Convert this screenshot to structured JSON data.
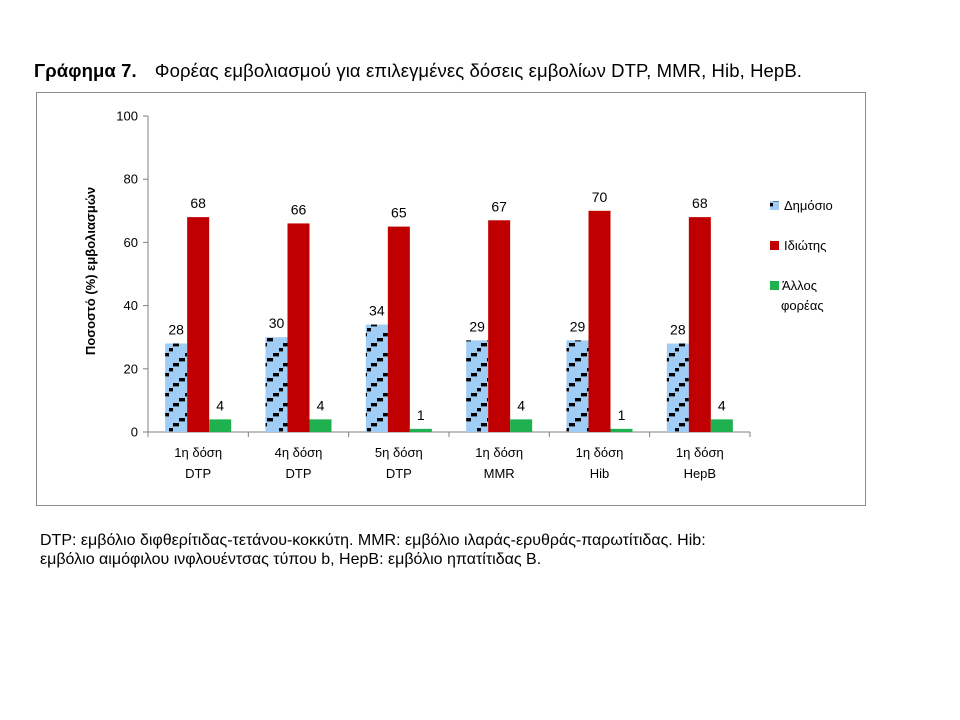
{
  "title": {
    "label": "Γράφημα 7.",
    "text": "Φορέας εμβολιασμού για επιλεγμένες δόσεις εμβολίων DTP, MMR, Hib, HepB."
  },
  "footnote": {
    "line1": "DTP: εμβόλιο διφθερίτιδας-τετάνου-κοκκύτη. MMR: εμβόλιο ιλαράς-ερυθράς-παρωτίτιδας. Hib:",
    "line2": "εμβόλιο αιμόφιλου ινφλουέντσας τύπου b, HepB: εμβόλιο ηπατίτιδας Β."
  },
  "chart_data": {
    "type": "bar",
    "ylabel": "Ποσοστό (%) εμβολιασμών",
    "xlabel": "",
    "ylim": [
      0,
      100
    ],
    "yticks": [
      0,
      20,
      40,
      60,
      80,
      100
    ],
    "grid": false,
    "legend_position": "right",
    "categories": [
      [
        "1η δόση",
        "DTP"
      ],
      [
        "4η δόση",
        "DTP"
      ],
      [
        "5η δόση",
        "DTP"
      ],
      [
        "1η δόση",
        "MMR"
      ],
      [
        "1η δόση",
        "Hib"
      ],
      [
        "1η δόση",
        "HepB"
      ]
    ],
    "series": [
      {
        "name": "Δημόσιο",
        "values": [
          28,
          30,
          34,
          29,
          29,
          28
        ],
        "color": "#9fcdf5",
        "pattern": "black-dash-stripes"
      },
      {
        "name": "Ιδιώτης",
        "values": [
          68,
          66,
          65,
          67,
          70,
          68
        ],
        "color": "#c00000"
      },
      {
        "name": "Άλλος φορέας",
        "values": [
          4,
          4,
          1,
          4,
          1,
          4
        ],
        "color": "#1fb14f"
      }
    ],
    "legend_labels": [
      [
        "Δημόσιο"
      ],
      [
        "Ιδιώτης"
      ],
      [
        "Άλλος",
        "φορέας"
      ]
    ]
  }
}
